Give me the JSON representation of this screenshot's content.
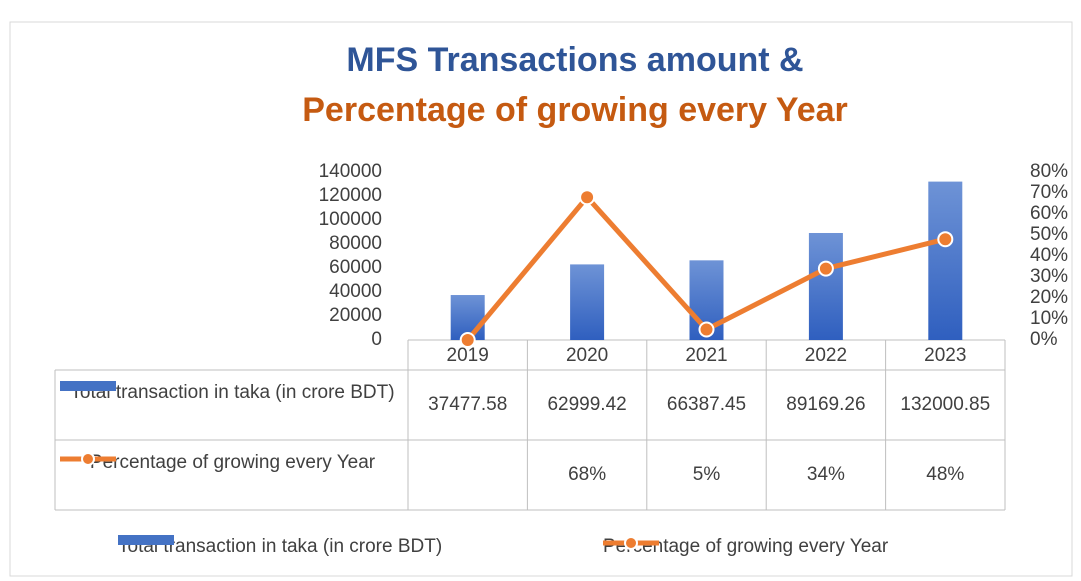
{
  "chart_data": {
    "type": "bar",
    "title": "MFS Transactions amount &",
    "subtitle": "Percentage of growing every Year",
    "categories": [
      "2019",
      "2020",
      "2021",
      "2022",
      "2023"
    ],
    "series": [
      {
        "name": "Total transaction in taka (in crore BDT)",
        "type": "bar",
        "color": "#4472c4",
        "values": [
          37477.58,
          62999.42,
          66387.45,
          89169.26,
          132000.85
        ]
      },
      {
        "name": "Percentage of growing every Year",
        "type": "line",
        "axis": "y2",
        "color": "#ed7d31",
        "values": [
          0,
          68,
          5,
          34,
          48
        ],
        "value_labels": [
          null,
          "68%",
          "5%",
          "34%",
          "48%"
        ]
      }
    ],
    "ylim": [
      0,
      140000
    ],
    "yticks": [
      0,
      20000,
      40000,
      60000,
      80000,
      100000,
      120000,
      140000
    ],
    "y2lim": [
      0,
      80
    ],
    "y2ticks": [
      {
        "value": 0,
        "label": "0%"
      },
      {
        "value": 10,
        "label": "10%"
      },
      {
        "value": 20,
        "label": "20%"
      },
      {
        "value": 30,
        "label": "30%"
      },
      {
        "value": 40,
        "label": "40%"
      },
      {
        "value": 50,
        "label": "50%"
      },
      {
        "value": 60,
        "label": "60%"
      },
      {
        "value": 70,
        "label": "70%"
      },
      {
        "value": 80,
        "label": "80%"
      }
    ],
    "data_table": true,
    "legend": "bottom"
  }
}
